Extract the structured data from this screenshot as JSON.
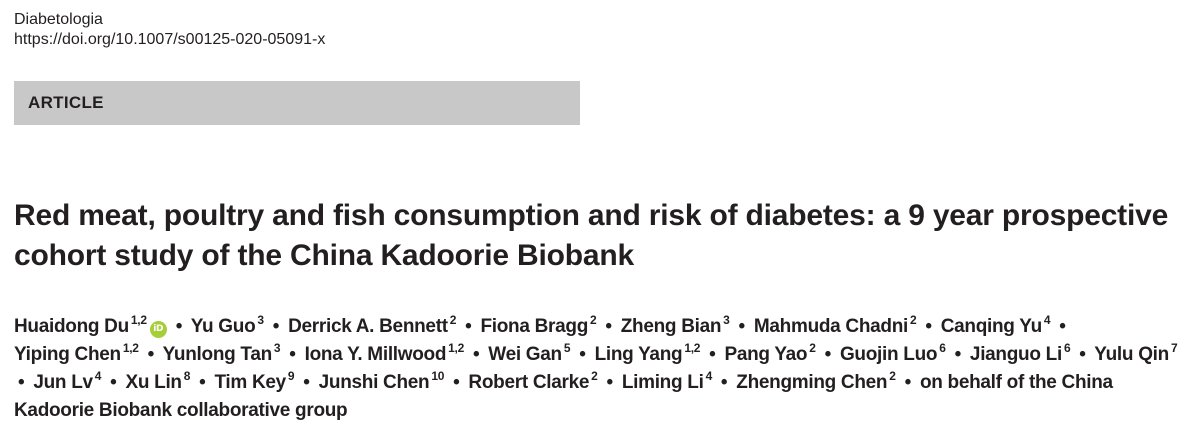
{
  "journal": {
    "name": "Diabetologia",
    "doi": "https://doi.org/10.1007/s00125-020-05091-x"
  },
  "article_type": "ARTICLE",
  "title": "Red meat, poultry and fish consumption and risk of diabetes: a 9 year prospective cohort study of the China Kadoorie Biobank",
  "orcid_badge": "iD",
  "authors": [
    {
      "name": "Huaidong Du",
      "aff": "1,2",
      "orcid": true
    },
    {
      "name": "Yu Guo",
      "aff": "3"
    },
    {
      "name": "Derrick A. Bennett",
      "aff": "2"
    },
    {
      "name": "Fiona Bragg",
      "aff": "2"
    },
    {
      "name": "Zheng Bian",
      "aff": "3"
    },
    {
      "name": "Mahmuda Chadni",
      "aff": "2"
    },
    {
      "name": "Canqing Yu",
      "aff": "4"
    },
    {
      "name": "Yiping Chen",
      "aff": "1,2"
    },
    {
      "name": "Yunlong Tan",
      "aff": "3"
    },
    {
      "name": "Iona Y. Millwood",
      "aff": "1,2"
    },
    {
      "name": "Wei Gan",
      "aff": "5"
    },
    {
      "name": "Ling Yang",
      "aff": "1,2"
    },
    {
      "name": "Pang Yao",
      "aff": "2"
    },
    {
      "name": "Guojin Luo",
      "aff": "6"
    },
    {
      "name": "Jianguo Li",
      "aff": "6"
    },
    {
      "name": "Yulu Qin",
      "aff": "7"
    },
    {
      "name": "Jun Lv",
      "aff": "4"
    },
    {
      "name": "Xu Lin",
      "aff": "8"
    },
    {
      "name": "Tim Key",
      "aff": "9"
    },
    {
      "name": "Junshi Chen",
      "aff": "10"
    },
    {
      "name": "Robert Clarke",
      "aff": "2"
    },
    {
      "name": "Liming Li",
      "aff": "4"
    },
    {
      "name": "Zhengming Chen",
      "aff": "2"
    }
  ],
  "group_author": "on behalf of the China Kadoorie Biobank collaborative group",
  "separator": "•",
  "colors": {
    "text": "#231f20",
    "article_bar": "#c8c8c8",
    "orcid": "#a6ce39"
  }
}
